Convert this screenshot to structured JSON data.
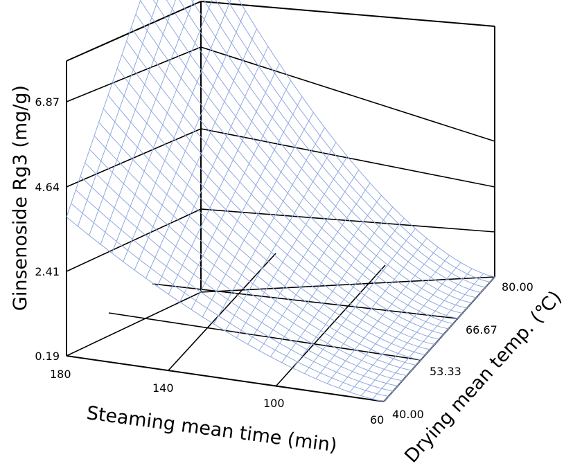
{
  "chart_data": {
    "type": "surface",
    "title": "",
    "zlabel": "Ginsenoside Rg3 (mg/g)",
    "xlabel": "Steaming mean time (min)",
    "ylabel": "Drying mean temp. (℃)",
    "z_ticks": [
      "0.19",
      "2.41",
      "4.64",
      "6.87"
    ],
    "x_ticks": [
      "180",
      "140",
      "100",
      "60"
    ],
    "y_ticks": [
      "40.00",
      "53.33",
      "66.67",
      "80.00"
    ],
    "x_range": [
      60,
      180
    ],
    "y_range": [
      40,
      80
    ],
    "z_range": [
      0.19,
      9.1
    ],
    "grid": true,
    "mesh_color": "#8fa8e0",
    "surface_corners": [
      {
        "steaming_min": 180,
        "drying_c": 40,
        "rg3_mg_g": 3.84
      },
      {
        "steaming_min": 180,
        "drying_c": 80,
        "rg3_mg_g": 9.1
      },
      {
        "steaming_min": 60,
        "drying_c": 80,
        "rg3_mg_g": 0.19
      },
      {
        "steaming_min": 60,
        "drying_c": 40,
        "rg3_mg_g": 0.19
      }
    ]
  }
}
